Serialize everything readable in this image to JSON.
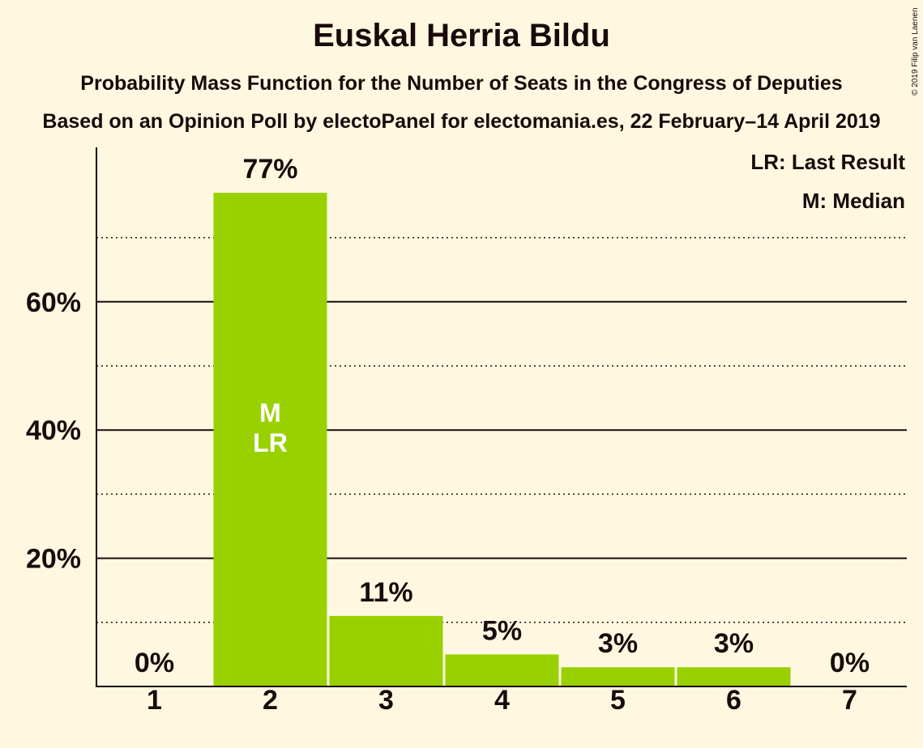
{
  "title": "Euskal Herria Bildu",
  "subtitle": "Probability Mass Function for the Number of Seats in the Congress of Deputies",
  "source": "Based on an Opinion Poll by electoPanel for electomania.es, 22 February–14 April 2019",
  "copyright": "© 2019 Filip van Laenen",
  "legend": {
    "last_result": "LR: Last Result",
    "median": "M: Median"
  },
  "colors": {
    "background": "#fff8e1",
    "bar": "#99d100",
    "text": "#1a0a0a",
    "bar_marker_text": "#ffffff"
  },
  "chart_data": {
    "type": "bar",
    "categories": [
      "1",
      "2",
      "3",
      "4",
      "5",
      "6",
      "7"
    ],
    "values": [
      0,
      77,
      11,
      5,
      3,
      3,
      0
    ],
    "value_labels": [
      "0%",
      "77%",
      "11%",
      "5%",
      "3%",
      "3%",
      "0%"
    ],
    "ylim": [
      0,
      84
    ],
    "yticks_major": [
      20,
      40,
      60
    ],
    "ytick_labels": [
      "20%",
      "40%",
      "60%"
    ],
    "yticks_minor": [
      10,
      30,
      50,
      70
    ],
    "median_category": "2",
    "last_result_category": "2",
    "bar_markers": {
      "median": "M",
      "last_result": "LR"
    },
    "grid": true,
    "legend_position": "top-right"
  }
}
